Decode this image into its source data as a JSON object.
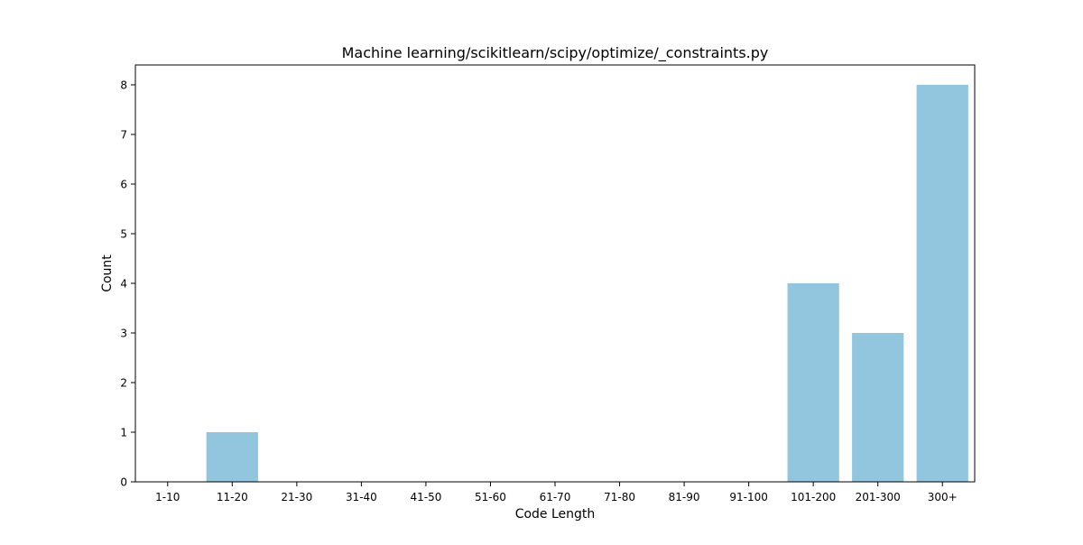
{
  "chart_data": {
    "type": "bar",
    "title": "Machine learning/scikitlearn/scipy/optimize/_constraints.py",
    "xlabel": "Code Length",
    "ylabel": "Count",
    "categories": [
      "1-10",
      "11-20",
      "21-30",
      "31-40",
      "41-50",
      "51-60",
      "61-70",
      "71-80",
      "81-90",
      "91-100",
      "101-200",
      "201-300",
      "300+"
    ],
    "values": [
      0,
      1,
      0,
      0,
      0,
      0,
      0,
      0,
      0,
      0,
      4,
      3,
      8
    ],
    "ylim": [
      0,
      8.4
    ],
    "yticks": [
      0,
      1,
      2,
      3,
      4,
      5,
      6,
      7,
      8
    ],
    "grid": false,
    "legend": "none",
    "bar_color": "#92c5de"
  }
}
